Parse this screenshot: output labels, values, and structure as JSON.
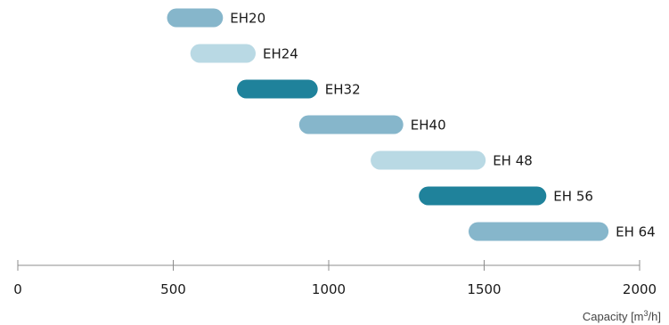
{
  "chart_data": {
    "type": "range-bar",
    "colors": {
      "medium": "#86b6cb",
      "light": "#b9d9e4",
      "dark": "#1f829b",
      "axis": "#8c8c8c"
    },
    "series": [
      {
        "label": "EH20",
        "start": 480,
        "end": 660,
        "color": "medium"
      },
      {
        "label": "EH24",
        "start": 555,
        "end": 765,
        "color": "light"
      },
      {
        "label": "EH32",
        "start": 705,
        "end": 965,
        "color": "dark"
      },
      {
        "label": "EH40",
        "start": 905,
        "end": 1240,
        "color": "medium"
      },
      {
        "label": "EH 48",
        "start": 1135,
        "end": 1505,
        "color": "light"
      },
      {
        "label": "EH 56",
        "start": 1290,
        "end": 1700,
        "color": "dark"
      },
      {
        "label": "EH 64",
        "start": 1450,
        "end": 1900,
        "color": "medium"
      }
    ],
    "xlim": [
      0,
      2000
    ],
    "xticks": [
      0,
      500,
      1000,
      1500,
      2000
    ],
    "xlabel_prefix": "Capacity [m",
    "xlabel_sup": "3",
    "xlabel_suffix": "/h]",
    "grid": false
  }
}
